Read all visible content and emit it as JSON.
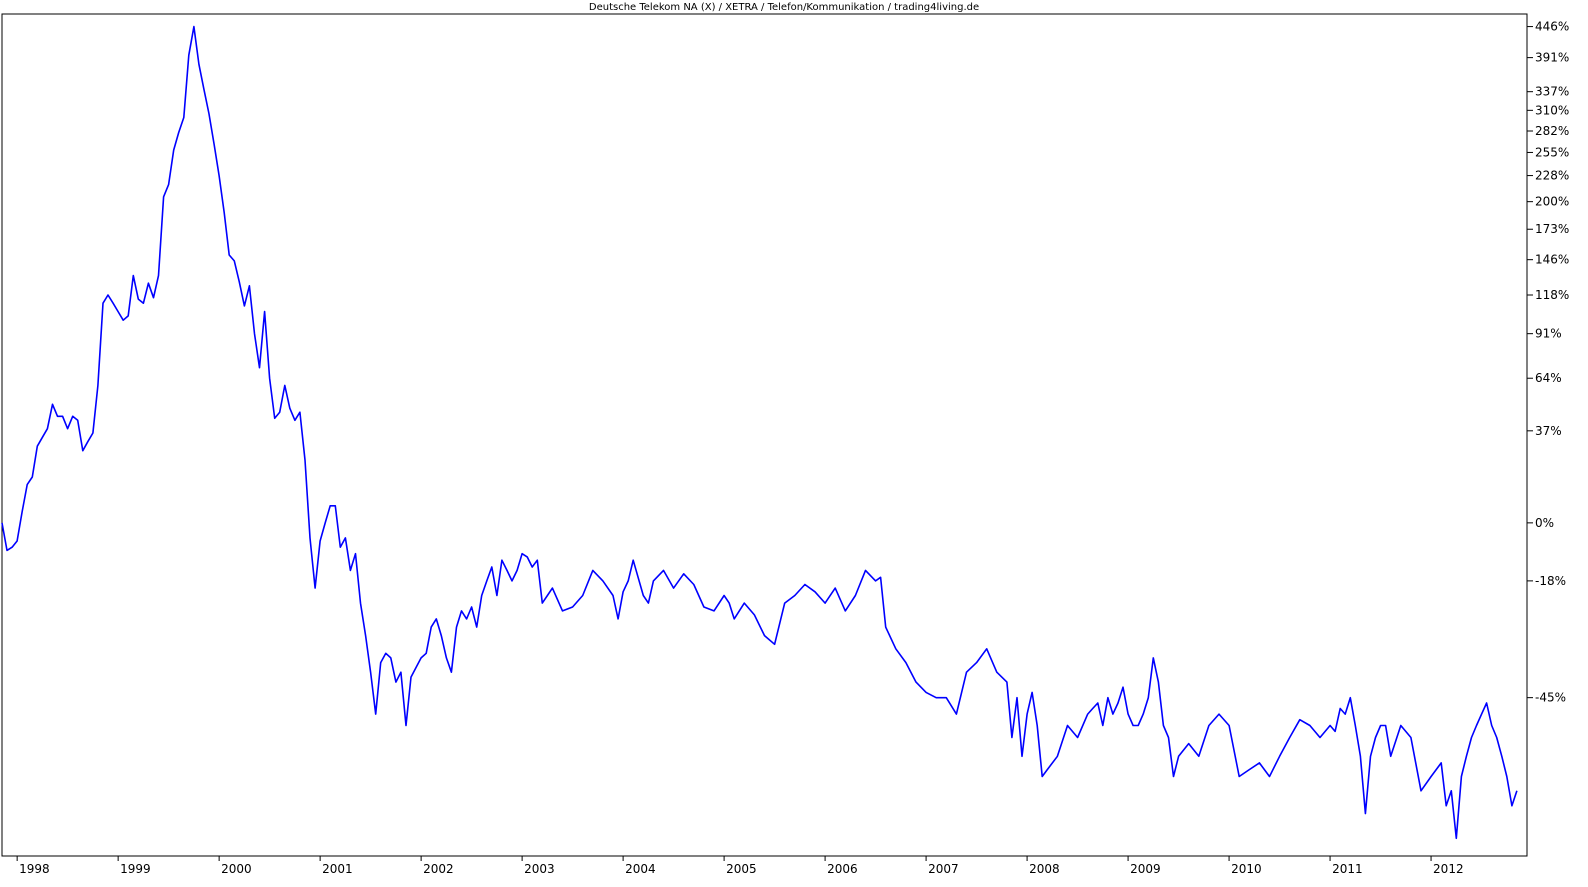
{
  "chart_data": {
    "type": "line",
    "title": "Deutsche Telekom NA (X) / XETRA / Telefon/Kommunikation / trading4living.de",
    "xlabel": "",
    "ylabel": "",
    "y_unit": "%",
    "y_scale": "log",
    "y_axis_position": "right",
    "grid": false,
    "legend": "none",
    "line_color": "#0000FF",
    "x_range": [
      1997.85,
      2012.95
    ],
    "y_range": [
      -68,
      470
    ],
    "x_tick_labels": [
      "1998",
      "1999",
      "2000",
      "2001",
      "2002",
      "2003",
      "2004",
      "2005",
      "2006",
      "2007",
      "2008",
      "2009",
      "2010",
      "2011",
      "2012"
    ],
    "x_tick_values": [
      1998,
      1999,
      2000,
      2001,
      2002,
      2003,
      2004,
      2005,
      2006,
      2007,
      2008,
      2009,
      2010,
      2011,
      2012
    ],
    "y_tick_labels": [
      "446%",
      "391%",
      "337%",
      "310%",
      "282%",
      "255%",
      "228%",
      "200%",
      "173%",
      "146%",
      "118%",
      "91%",
      "64%",
      "37%",
      "0%",
      "-18%",
      "-45%"
    ],
    "y_tick_values": [
      446,
      391,
      337,
      310,
      282,
      255,
      228,
      200,
      173,
      146,
      118,
      91,
      64,
      37,
      0,
      -18,
      -45
    ],
    "series": [
      {
        "x": [
          1997.85,
          1997.9,
          1997.95,
          1998.0,
          1998.05,
          1998.1,
          1998.15,
          1998.2,
          1998.25,
          1998.3,
          1998.35,
          1998.4,
          1998.45,
          1998.5,
          1998.55,
          1998.6,
          1998.65,
          1998.7,
          1998.75,
          1998.8,
          1998.85,
          1998.9,
          1998.95,
          1999.0,
          1999.05,
          1999.1,
          1999.15,
          1999.2,
          1999.25,
          1999.3,
          1999.35,
          1999.4,
          1999.45,
          1999.5,
          1999.55,
          1999.6,
          1999.65,
          1999.7,
          1999.75,
          1999.8,
          1999.85,
          1999.9,
          1999.95,
          2000.0,
          2000.05,
          2000.1,
          2000.15,
          2000.2,
          2000.25,
          2000.3,
          2000.35,
          2000.4,
          2000.45,
          2000.5,
          2000.55,
          2000.6,
          2000.65,
          2000.7,
          2000.75,
          2000.8,
          2000.85,
          2000.9,
          2000.95,
          2001.0,
          2001.05,
          2001.1,
          2001.15,
          2001.2,
          2001.25,
          2001.3,
          2001.35,
          2001.4,
          2001.45,
          2001.5,
          2001.55,
          2001.6,
          2001.65,
          2001.7,
          2001.75,
          2001.8,
          2001.85,
          2001.9,
          2001.95,
          2002.0,
          2002.05,
          2002.1,
          2002.15,
          2002.2,
          2002.25,
          2002.3,
          2002.35,
          2002.4,
          2002.45,
          2002.5,
          2002.55,
          2002.6,
          2002.65,
          2002.7,
          2002.75,
          2002.8,
          2002.85,
          2002.9,
          2002.95,
          2003.0,
          2003.05,
          2003.1,
          2003.15,
          2003.2,
          2003.25,
          2003.3,
          2003.4,
          2003.5,
          2003.6,
          2003.7,
          2003.8,
          2003.9,
          2003.95,
          2004.0,
          2004.05,
          2004.1,
          2004.2,
          2004.25,
          2004.3,
          2004.4,
          2004.5,
          2004.6,
          2004.7,
          2004.8,
          2004.9,
          2005.0,
          2005.05,
          2005.1,
          2005.2,
          2005.3,
          2005.4,
          2005.5,
          2005.6,
          2005.7,
          2005.8,
          2005.9,
          2006.0,
          2006.1,
          2006.2,
          2006.3,
          2006.4,
          2006.5,
          2006.55,
          2006.6,
          2006.7,
          2006.8,
          2006.9,
          2007.0,
          2007.1,
          2007.2,
          2007.3,
          2007.4,
          2007.5,
          2007.6,
          2007.7,
          2007.8,
          2007.85,
          2007.9,
          2007.95,
          2008.0,
          2008.05,
          2008.1,
          2008.15,
          2008.2,
          2008.3,
          2008.4,
          2008.5,
          2008.6,
          2008.65,
          2008.7,
          2008.75,
          2008.8,
          2008.85,
          2008.9,
          2008.95,
          2009.0,
          2009.05,
          2009.1,
          2009.15,
          2009.2,
          2009.25,
          2009.3,
          2009.35,
          2009.4,
          2009.45,
          2009.5,
          2009.6,
          2009.7,
          2009.8,
          2009.9,
          2010.0,
          2010.1,
          2010.2,
          2010.3,
          2010.4,
          2010.5,
          2010.6,
          2010.7,
          2010.8,
          2010.9,
          2011.0,
          2011.05,
          2011.1,
          2011.15,
          2011.2,
          2011.25,
          2011.3,
          2011.35,
          2011.4,
          2011.45,
          2011.5,
          2011.55,
          2011.6,
          2011.7,
          2011.8,
          2011.9,
          2012.0,
          2012.1,
          2012.15,
          2012.2,
          2012.25,
          2012.3,
          2012.35,
          2012.4,
          2012.45,
          2012.5,
          2012.55,
          2012.6,
          2012.65,
          2012.7,
          2012.75,
          2012.8,
          2012.85
        ],
        "y": [
          0,
          -9,
          -8,
          -6,
          4,
          14,
          17,
          30,
          34,
          38,
          50,
          44,
          44,
          38,
          44,
          42,
          28,
          32,
          36,
          60,
          112,
          118,
          112,
          106,
          100,
          103,
          133,
          115,
          112,
          127,
          116,
          133,
          205,
          218,
          258,
          280,
          300,
          395,
          446,
          380,
          340,
          305,
          265,
          228,
          189,
          150,
          145,
          128,
          110,
          125,
          91,
          70,
          106,
          64,
          43,
          46,
          60,
          48,
          42,
          46,
          24,
          -5,
          -20,
          -6,
          0,
          6,
          6,
          -8,
          -5,
          -15,
          -10,
          -24,
          -32,
          -40,
          -48,
          -38,
          -36,
          -37,
          -42,
          -40,
          -50,
          -41,
          -39,
          -37,
          -36,
          -30,
          -28,
          -32,
          -37,
          -40,
          -30,
          -26,
          -28,
          -25,
          -30,
          -22,
          -18,
          -14,
          -22,
          -12,
          -15,
          -18,
          -15,
          -10,
          -11,
          -14,
          -12,
          -24,
          -22,
          -20,
          -26,
          -25,
          -22,
          -15,
          -18,
          -22,
          -28,
          -21,
          -18,
          -12,
          -22,
          -24,
          -18,
          -15,
          -20,
          -16,
          -19,
          -25,
          -26,
          -22,
          -24,
          -28,
          -24,
          -27,
          -32,
          -34,
          -24,
          -22,
          -19,
          -21,
          -24,
          -20,
          -26,
          -22,
          -15,
          -18,
          -17,
          -30,
          -35,
          -38,
          -42,
          -44,
          -45,
          -45,
          -48,
          -40,
          -38,
          -35,
          -40,
          -42,
          -52,
          -45,
          -55,
          -48,
          -44,
          -50,
          -58,
          -57,
          -55,
          -50,
          -52,
          -48,
          -47,
          -46,
          -50,
          -45,
          -48,
          -46,
          -43,
          -48,
          -50,
          -50,
          -48,
          -45,
          -37,
          -42,
          -50,
          -52,
          -58,
          -55,
          -53,
          -55,
          -50,
          -48,
          -50,
          -58,
          -57,
          -56,
          -58,
          -55,
          -52,
          -49,
          -50,
          -52,
          -50,
          -51,
          -47,
          -48,
          -45,
          -50,
          -55,
          -63,
          -55,
          -52,
          -50,
          -50,
          -55,
          -50,
          -52,
          -60,
          -58,
          -56,
          -62,
          -60,
          -66,
          -58,
          -55,
          -52,
          -50,
          -48,
          -46,
          -50,
          -52,
          -55,
          -58,
          -62,
          -60
        ]
      }
    ]
  }
}
